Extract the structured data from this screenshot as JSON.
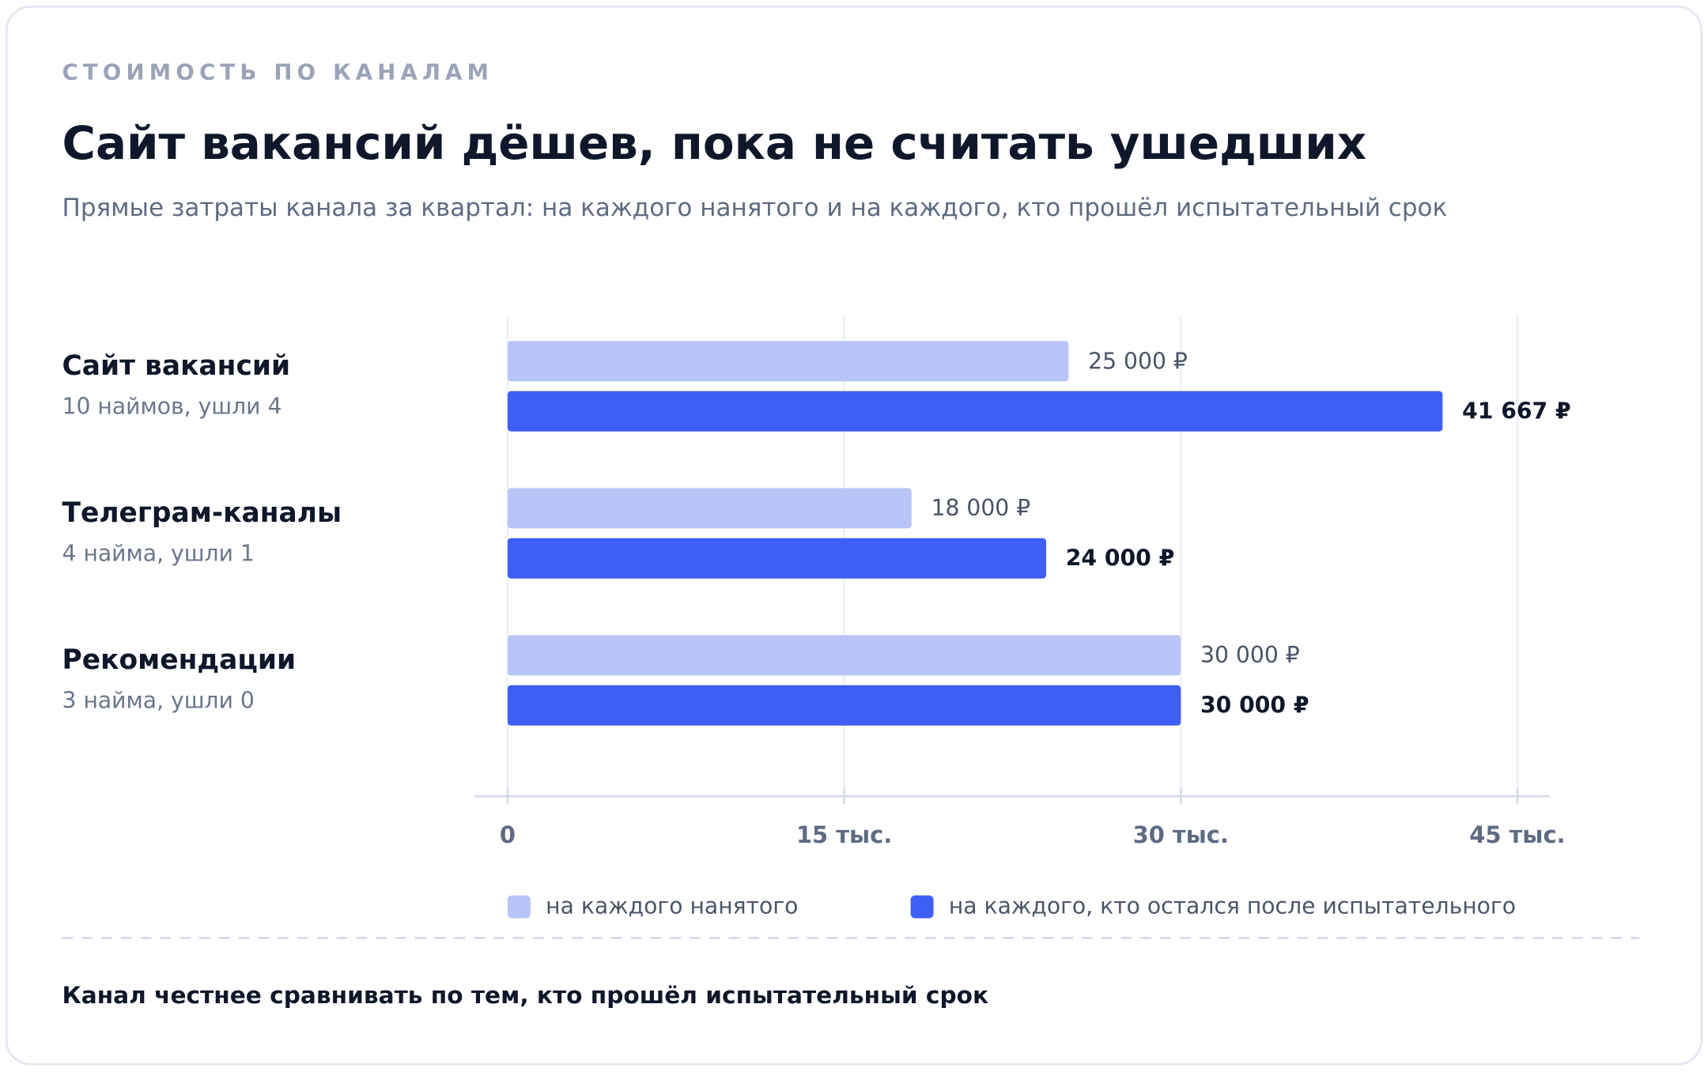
{
  "chart_data": {
    "type": "bar",
    "orientation": "horizontal",
    "eyebrow": "СТОИМОСТЬ ПО КАНАЛАМ",
    "title": "Сайт вакансий дёшев, пока не считать ушедших",
    "subtitle": "Прямые затраты канала за квартал: на каждого нанятого и на каждого, кто прошёл испытательный срок",
    "categories": [
      "Сайт вакансий",
      "Телеграм-каналы",
      "Рекомендации"
    ],
    "category_notes": [
      "10 наймов, ушли 4",
      "4 найма, ушли 1",
      "3 найма, ушли 0"
    ],
    "series": [
      {
        "name": "на каждого нанятого",
        "color": "#b9c4f8",
        "values": [
          25000,
          18000,
          30000
        ],
        "value_labels": [
          "25 000 ₽",
          "18 000 ₽",
          "30 000 ₽"
        ]
      },
      {
        "name": "на каждого, кто остался после испытательного",
        "color": "#3f5ef5",
        "values": [
          41667,
          24000,
          30000
        ],
        "value_labels": [
          "41 667 ₽",
          "24 000 ₽",
          "30 000 ₽"
        ]
      }
    ],
    "xlim": [
      0,
      45000
    ],
    "xticks": [
      0,
      {
        "value": 15000,
        "label": "15 тыс."
      },
      {
        "value": 30000,
        "label": "30 тыс."
      },
      {
        "value": 45000,
        "label": "45 тыс."
      }
    ],
    "grid": true,
    "legend": "bottom",
    "annotation": "Канал честнее сравнивать по тем, кто прошёл испытательный срок"
  }
}
